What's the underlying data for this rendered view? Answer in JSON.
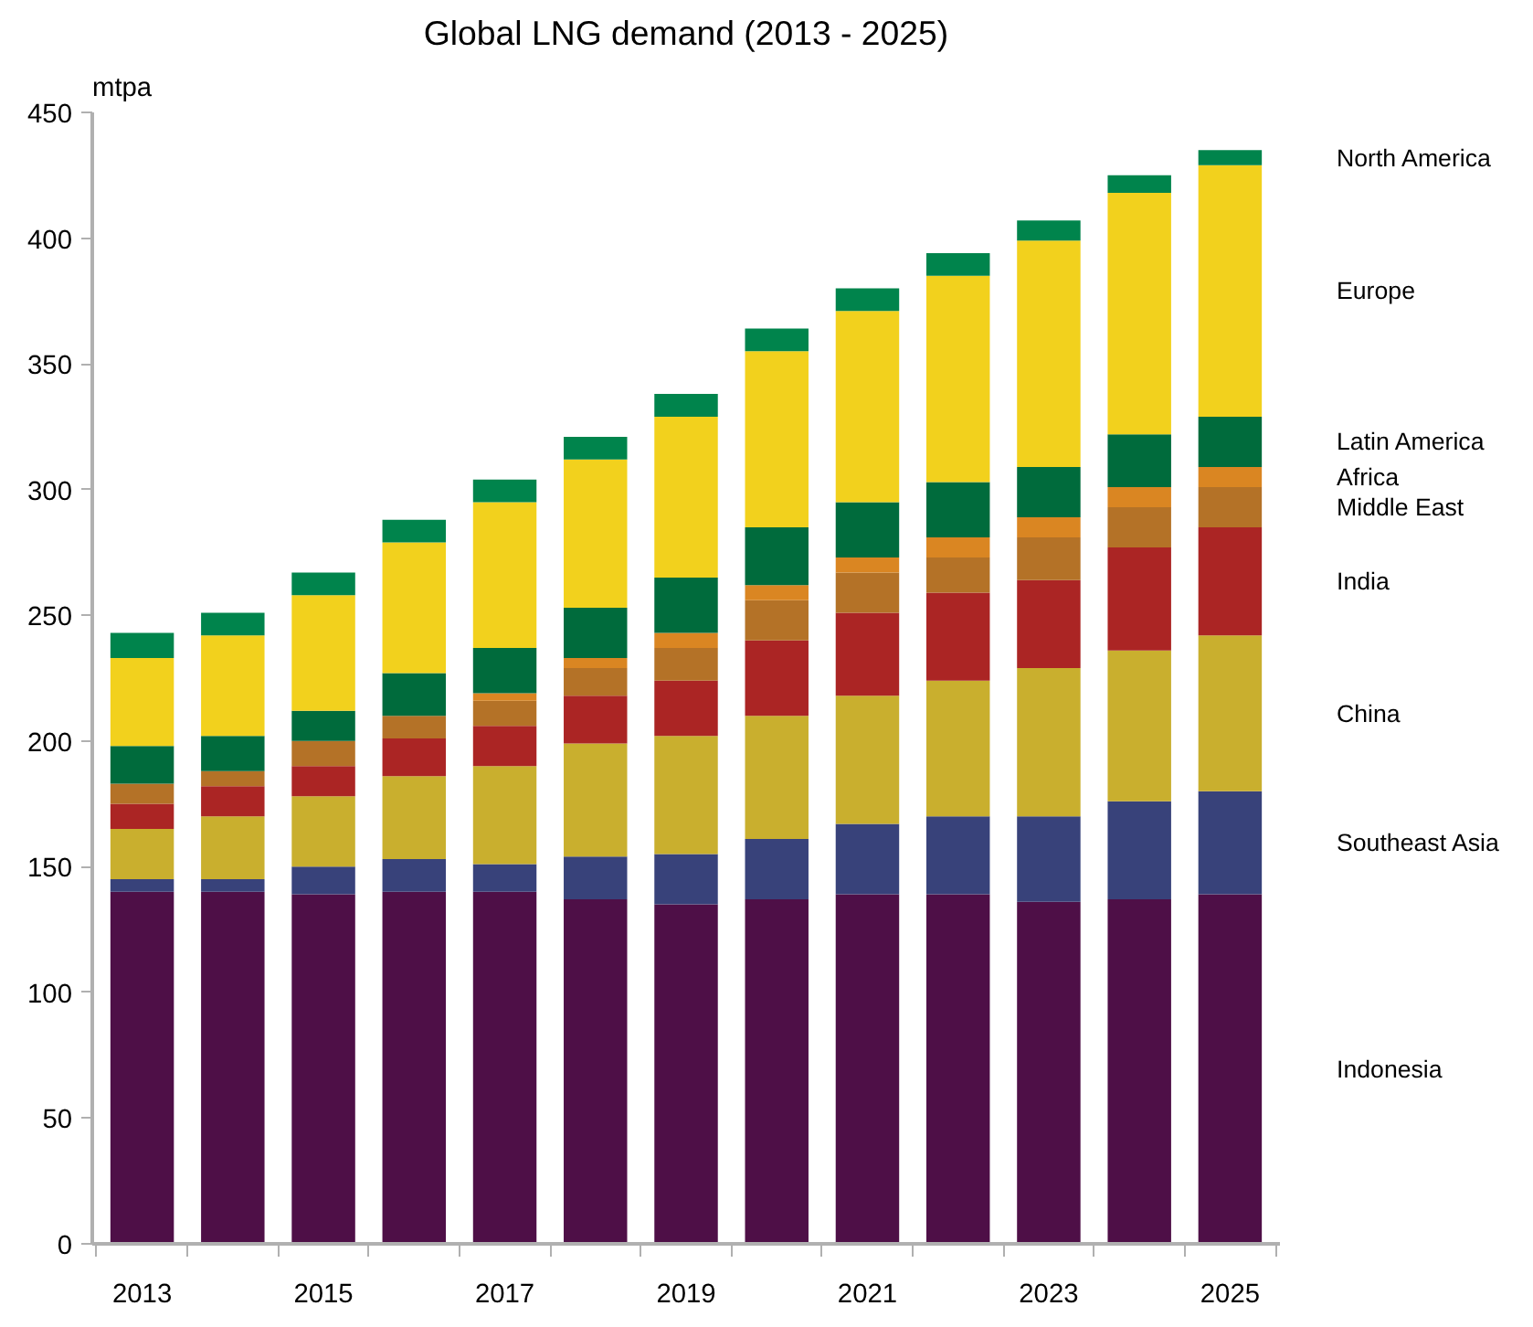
{
  "chart_data": {
    "type": "bar",
    "stacked": true,
    "title": "Global LNG demand (2013 - 2025)",
    "ylabel": "mtpa",
    "categories": [
      "2013",
      null,
      "2015",
      null,
      "2017",
      null,
      "2019",
      null,
      "2021",
      null,
      "2023",
      null,
      "2025"
    ],
    "ylim": [
      0,
      450
    ],
    "yticks": [
      0,
      50,
      100,
      150,
      200,
      250,
      300,
      350,
      400,
      450
    ],
    "grid": false,
    "series": [
      {
        "name": "Indonesia",
        "color": "#4e0f47",
        "values": [
          140,
          140,
          139,
          140,
          140,
          137,
          135,
          137,
          139,
          139,
          136,
          137,
          139
        ]
      },
      {
        "name": "Southeast Asia",
        "color": "#38427a",
        "values": [
          5,
          5,
          11,
          13,
          11,
          17,
          20,
          24,
          28,
          31,
          34,
          39,
          41
        ]
      },
      {
        "name": "China",
        "color": "#c9af2e",
        "values": [
          20,
          25,
          28,
          33,
          39,
          45,
          47,
          49,
          51,
          54,
          59,
          60,
          62
        ]
      },
      {
        "name": "India",
        "color": "#ab2524",
        "values": [
          10,
          12,
          12,
          15,
          16,
          19,
          22,
          30,
          33,
          35,
          35,
          41,
          43
        ]
      },
      {
        "name": "Middle East",
        "color": "#b47227",
        "values": [
          8,
          6,
          10,
          9,
          10,
          11,
          13,
          16,
          16,
          14,
          17,
          16,
          16
        ]
      },
      {
        "name": "Africa",
        "color": "#da8622",
        "values": [
          0,
          0,
          0,
          0,
          3,
          4,
          6,
          6,
          6,
          8,
          8,
          8,
          8
        ]
      },
      {
        "name": "Latin America",
        "color": "#006b3c",
        "values": [
          15,
          14,
          12,
          17,
          18,
          20,
          22,
          23,
          22,
          22,
          20,
          21,
          20
        ]
      },
      {
        "name": "Europe",
        "color": "#f2d11d",
        "values": [
          35,
          40,
          46,
          52,
          58,
          59,
          64,
          70,
          76,
          82,
          90,
          96,
          100
        ]
      },
      {
        "name": "North America",
        "color": "#00844c",
        "values": [
          10,
          9,
          9,
          9,
          9,
          9,
          9,
          9,
          9,
          9,
          8,
          7,
          6
        ]
      }
    ]
  }
}
